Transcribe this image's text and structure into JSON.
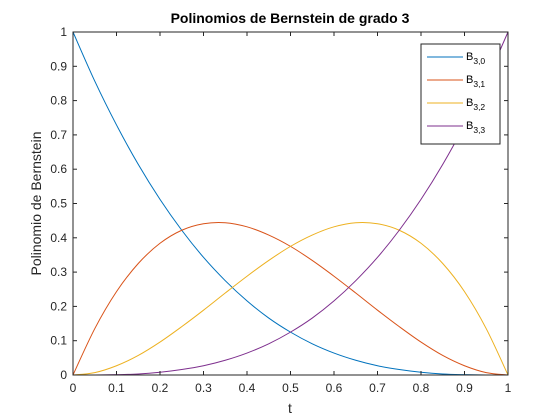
{
  "chart_data": {
    "type": "line",
    "title": "Polinomios de Bernstein de grado 3",
    "xlabel": "t",
    "ylabel": "Polinomio de Bernstein",
    "xlim": [
      0,
      1
    ],
    "ylim": [
      0,
      1
    ],
    "xticks": [
      "0",
      "0.1",
      "0.2",
      "0.3",
      "0.4",
      "0.5",
      "0.6",
      "0.7",
      "0.8",
      "0.9",
      "1"
    ],
    "yticks": [
      "0",
      "0.1",
      "0.2",
      "0.3",
      "0.4",
      "0.5",
      "0.6",
      "0.7",
      "0.8",
      "0.9",
      "1"
    ],
    "grid": false,
    "legend_location": "top-right",
    "x": [
      0,
      0.05,
      0.1,
      0.15,
      0.2,
      0.25,
      0.3,
      0.35,
      0.4,
      0.45,
      0.5,
      0.55,
      0.6,
      0.65,
      0.7,
      0.75,
      0.8,
      0.85,
      0.9,
      0.95,
      1
    ],
    "series": [
      {
        "name": "B3,0",
        "label_base": "B",
        "label_sub": "3,0",
        "color": "#0072BD",
        "values": [
          1,
          0.857,
          0.729,
          0.614,
          0.512,
          0.422,
          0.343,
          0.275,
          0.216,
          0.166,
          0.125,
          0.091,
          0.064,
          0.043,
          0.027,
          0.016,
          0.008,
          0.003,
          0.001,
          0.0001,
          0
        ]
      },
      {
        "name": "B3,1",
        "label_base": "B",
        "label_sub": "3,1",
        "color": "#D95319",
        "values": [
          0,
          0.135,
          0.243,
          0.325,
          0.384,
          0.422,
          0.441,
          0.444,
          0.432,
          0.408,
          0.375,
          0.334,
          0.288,
          0.239,
          0.189,
          0.141,
          0.096,
          0.057,
          0.027,
          0.007,
          0
        ]
      },
      {
        "name": "B3,2",
        "label_base": "B",
        "label_sub": "3,2",
        "color": "#EDB120",
        "values": [
          0,
          0.007,
          0.027,
          0.057,
          0.096,
          0.141,
          0.189,
          0.239,
          0.288,
          0.334,
          0.375,
          0.408,
          0.432,
          0.444,
          0.441,
          0.422,
          0.384,
          0.325,
          0.243,
          0.135,
          0
        ]
      },
      {
        "name": "B3,3",
        "label_base": "B",
        "label_sub": "3,3",
        "color": "#7E2F8E",
        "values": [
          0,
          0.0001,
          0.001,
          0.003,
          0.008,
          0.016,
          0.027,
          0.043,
          0.064,
          0.091,
          0.125,
          0.166,
          0.216,
          0.275,
          0.343,
          0.422,
          0.512,
          0.614,
          0.729,
          0.857,
          1
        ]
      }
    ]
  }
}
